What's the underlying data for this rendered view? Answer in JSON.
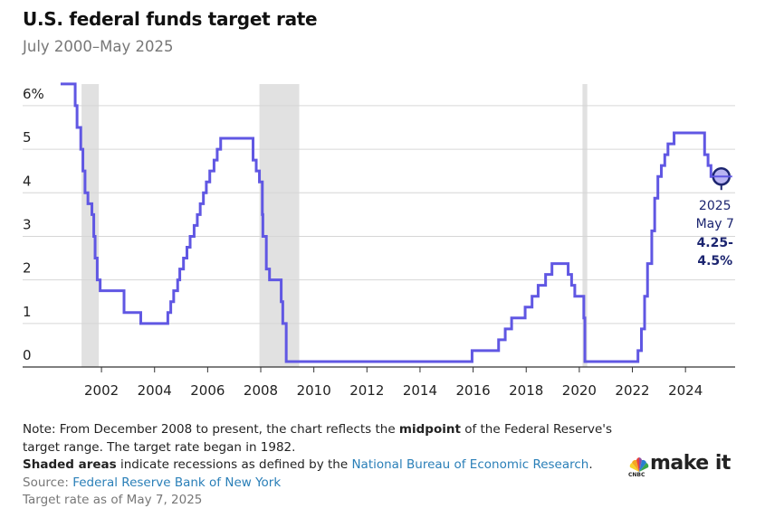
{
  "chart_data": {
    "type": "step",
    "title": "U.S. federal funds target rate",
    "subtitle": "July 2000–May 2025",
    "xlim": [
      1999.03,
      2025.87
    ],
    "xticks": [
      2002,
      2004,
      2006,
      2008,
      2010,
      2012,
      2014,
      2016,
      2018,
      2020,
      2022,
      2024
    ],
    "ylim": [
      0,
      6.6
    ],
    "yticks": [
      0,
      1,
      2,
      3,
      4,
      5,
      {
        "value": 6,
        "label": "6%"
      }
    ],
    "grid": true,
    "recession_color": "#e1e1e1",
    "recessions": [
      [
        2001.25,
        2001.9
      ],
      [
        2007.95,
        2009.45
      ],
      [
        2020.12,
        2020.3
      ]
    ],
    "series": [
      {
        "name": "Federal funds target rate",
        "color": "#6057e3",
        "x": [
          2000.46,
          2001.01,
          2001.08,
          2001.22,
          2001.3,
          2001.38,
          2001.49,
          2001.64,
          2001.71,
          2001.76,
          2001.84,
          2001.95,
          2002.85,
          2003.48,
          2004.5,
          2004.61,
          2004.72,
          2004.87,
          2004.95,
          2005.09,
          2005.22,
          2005.34,
          2005.49,
          2005.61,
          2005.72,
          2005.84,
          2005.95,
          2006.08,
          2006.24,
          2006.36,
          2006.49,
          2007.71,
          2007.83,
          2007.95,
          2008.06,
          2008.08,
          2008.21,
          2008.33,
          2008.77,
          2008.83,
          2008.96,
          2015.96,
          2016.96,
          2017.21,
          2017.45,
          2017.96,
          2018.22,
          2018.45,
          2018.73,
          2018.97,
          2019.58,
          2019.71,
          2019.83,
          2020.17,
          2020.21,
          2022.21,
          2022.34,
          2022.46,
          2022.57,
          2022.73,
          2022.84,
          2022.96,
          2023.09,
          2023.22,
          2023.34,
          2023.57,
          2024.72,
          2024.85,
          2024.96,
          2025.35
        ],
        "values": [
          6.5,
          6.0,
          5.5,
          5.0,
          4.5,
          4.0,
          3.75,
          3.5,
          3.0,
          2.5,
          2.0,
          1.75,
          1.25,
          1.0,
          1.25,
          1.5,
          1.75,
          2.0,
          2.25,
          2.5,
          2.75,
          3.0,
          3.25,
          3.5,
          3.75,
          4.0,
          4.25,
          4.5,
          4.75,
          5.0,
          5.25,
          4.75,
          4.5,
          4.25,
          3.5,
          3.0,
          2.25,
          2.0,
          1.5,
          1.0,
          0.125,
          0.375,
          0.625,
          0.875,
          1.125,
          1.375,
          1.625,
          1.875,
          2.125,
          2.375,
          2.125,
          1.875,
          1.625,
          1.125,
          0.125,
          0.375,
          0.875,
          1.625,
          2.375,
          3.125,
          3.875,
          4.375,
          4.625,
          4.875,
          5.125,
          5.375,
          4.875,
          4.625,
          4.375,
          4.375
        ]
      }
    ],
    "annotation": {
      "x": 2025.35,
      "value": 4.375,
      "lines": [
        "2025",
        "May 7"
      ],
      "bold_lines": [
        "4.25-",
        "4.5%"
      ]
    }
  },
  "notes": {
    "note_start": "Note: From December 2008 to present, the chart reflects the ",
    "note_bold": "midpoint",
    "note_end": " of the Federal Reserve's target range. The target rate began in 1982.",
    "shaded_bold": "Shaded areas",
    "shaded_text": " indicate recessions as defined by the ",
    "shaded_link": "National Bureau of Economic Research",
    "shaded_end": ".",
    "source_label": "Source: ",
    "source_link": "Federal Reserve Bank of New York",
    "as_of": "Target rate as of May 7, 2025"
  },
  "logo": {
    "small": "CNBC",
    "text": "make it"
  }
}
